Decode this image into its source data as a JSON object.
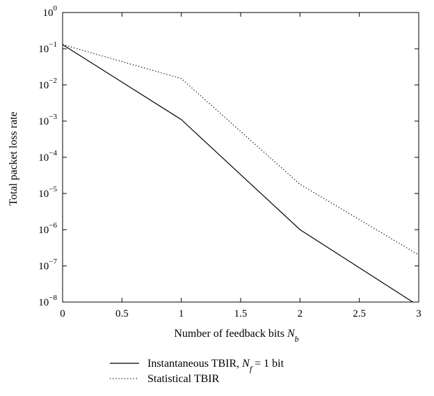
{
  "chart_data": {
    "type": "line",
    "title": "",
    "xlabel": {
      "main": "Number of feedback bits ",
      "var": "N",
      "sub": "b"
    },
    "ylabel": "Total packet loss rate",
    "xlim": [
      0,
      3
    ],
    "ylim": [
      1e-08,
      1
    ],
    "yscale": "log",
    "grid": false,
    "legend_position": "bottom",
    "x_ticks": [
      "0",
      "0.5",
      "1",
      "1.5",
      "2",
      "2.5",
      "3"
    ],
    "y_ticks": [
      {
        "base": "10",
        "exp": "0"
      },
      {
        "base": "10",
        "exp": "−1"
      },
      {
        "base": "10",
        "exp": "−2"
      },
      {
        "base": "10",
        "exp": "−3"
      },
      {
        "base": "10",
        "exp": "−4"
      },
      {
        "base": "10",
        "exp": "−5"
      },
      {
        "base": "10",
        "exp": "−6"
      },
      {
        "base": "10",
        "exp": "−7"
      },
      {
        "base": "10",
        "exp": "−8"
      }
    ],
    "series": [
      {
        "name": "Instantaneous TBIR, N_f = 1 bit",
        "legend": {
          "pre": "Instantaneous TBIR, ",
          "var": "N",
          "sub": "f",
          "post": " = 1 bit"
        },
        "style": "solid",
        "x": [
          0,
          1,
          2,
          2.95
        ],
        "y": [
          0.13,
          0.0011,
          1e-06,
          1e-08
        ]
      },
      {
        "name": "Statistical TBIR",
        "legend": {
          "pre": "Statistical TBIR",
          "var": "",
          "sub": "",
          "post": ""
        },
        "style": "dotted",
        "x": [
          0,
          1,
          2,
          3
        ],
        "y": [
          0.13,
          0.015,
          1.8e-05,
          2e-07
        ]
      }
    ]
  }
}
